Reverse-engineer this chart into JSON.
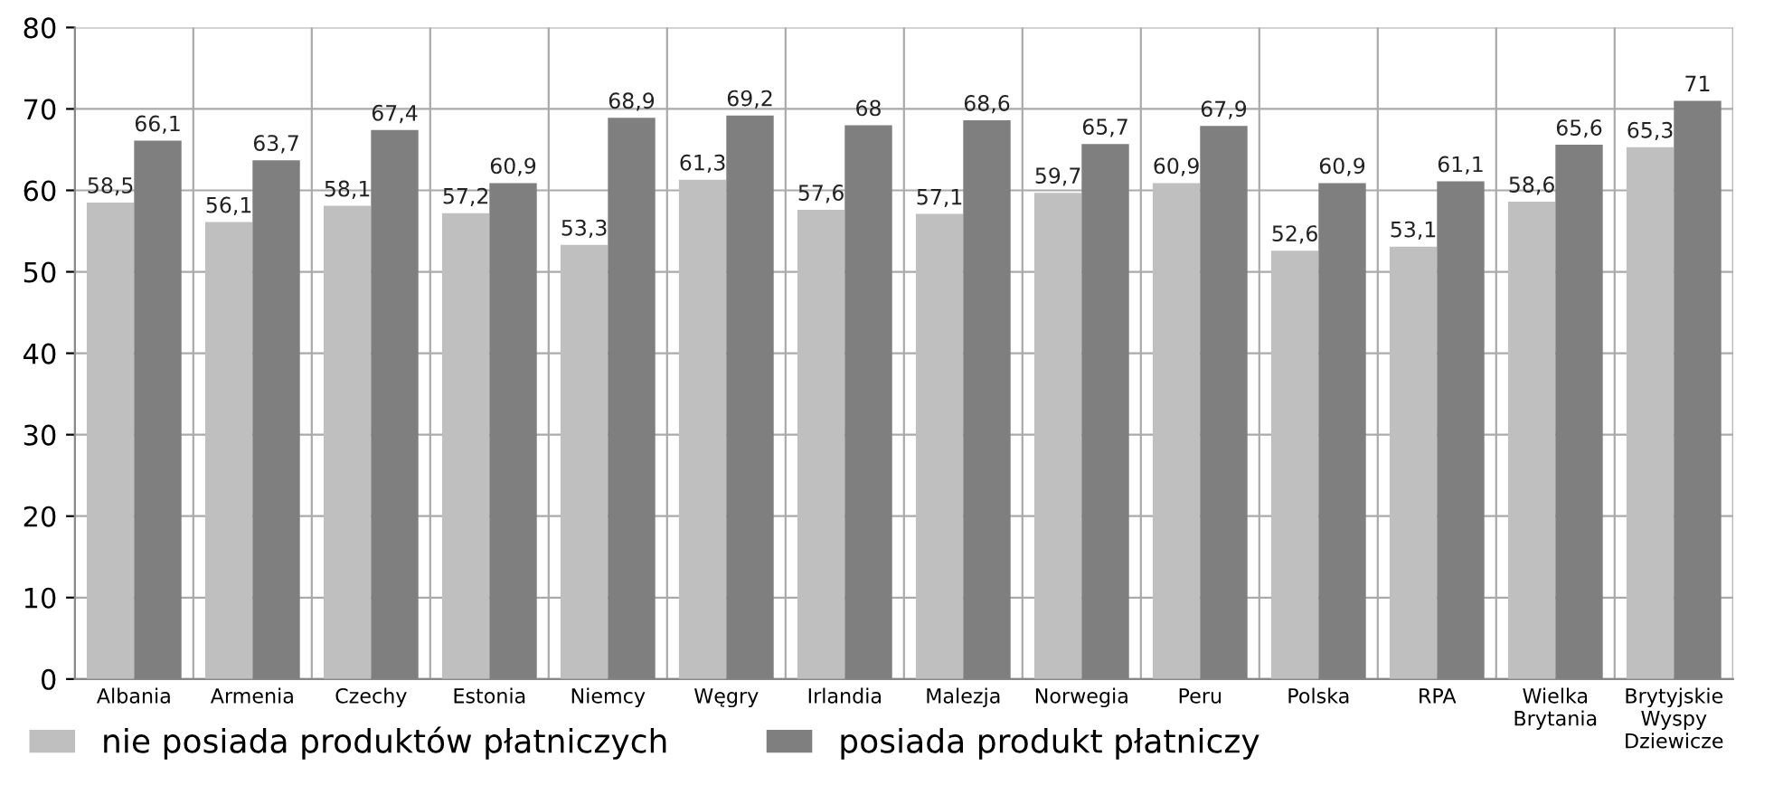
{
  "chart_data": {
    "type": "bar",
    "categories": [
      "Albania",
      "Armenia",
      "Czechy",
      "Estonia",
      "Niemcy",
      "Węgry",
      "Irlandia",
      "Malezja",
      "Norwegia",
      "Peru",
      "Polska",
      "RPA",
      "Wielka\nBrytania",
      "Brytyjskie\nWyspy\nDziewicze"
    ],
    "series": [
      {
        "name": "nie posiada produktów płatniczych",
        "color": "#bfbfbf",
        "values": [
          58.5,
          56.1,
          58.1,
          57.2,
          53.3,
          61.3,
          57.6,
          57.1,
          59.7,
          60.9,
          52.6,
          53.1,
          58.6,
          65.3
        ],
        "value_labels": [
          "58,5",
          "56,1",
          "58,1",
          "57,2",
          "53,3",
          "61,3",
          "57,6",
          "57,1",
          "59,7",
          "60,9",
          "52,6",
          "53,1",
          "58,6",
          "65,3"
        ]
      },
      {
        "name": "posiada produkt płatniczy",
        "color": "#7f7f7f",
        "values": [
          66.1,
          63.7,
          67.4,
          60.9,
          68.9,
          69.2,
          68,
          68.6,
          65.7,
          67.9,
          60.9,
          61.1,
          65.6,
          71
        ],
        "value_labels": [
          "66,1",
          "63,7",
          "67,4",
          "60,9",
          "68,9",
          "69,2",
          "68",
          "68,6",
          "65,7",
          "67,9",
          "60,9",
          "61,1",
          "65,6",
          "71"
        ]
      }
    ],
    "ylim": [
      0,
      80
    ],
    "yticks": [
      0,
      10,
      20,
      30,
      40,
      50,
      60,
      70,
      80
    ],
    "grid": true,
    "legend": "bottom"
  }
}
